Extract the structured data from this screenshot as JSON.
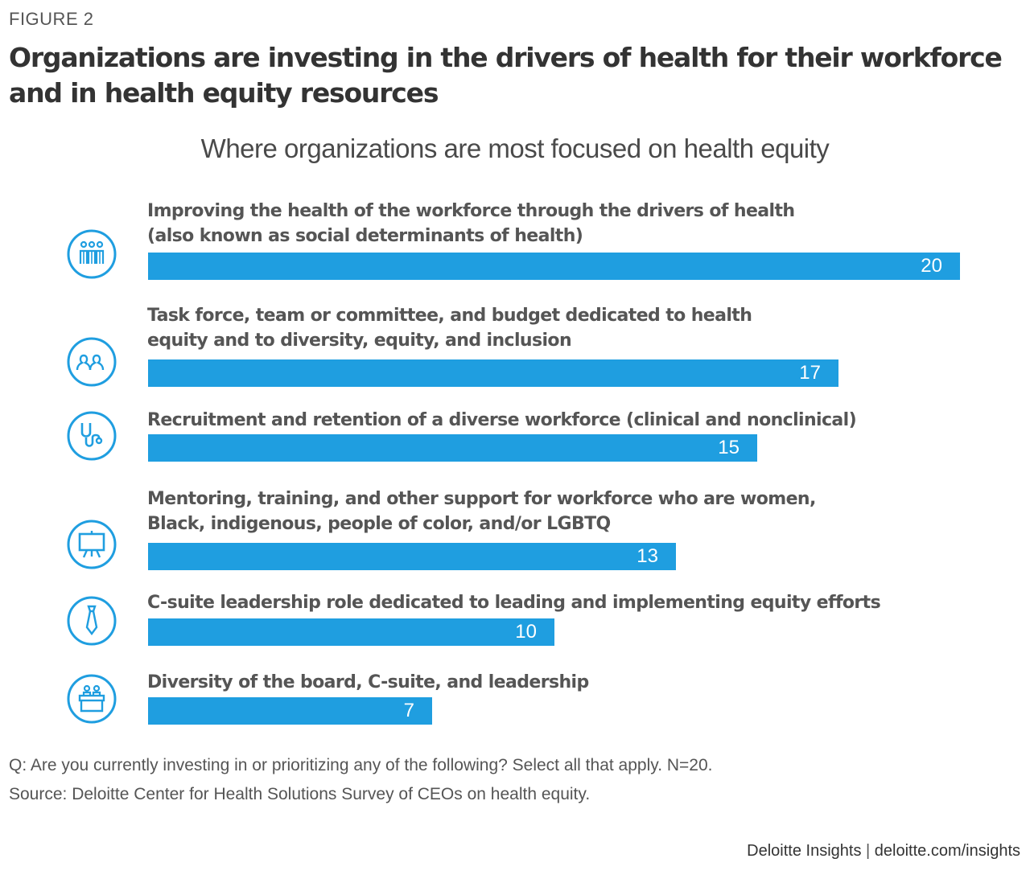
{
  "figure_label": "FIGURE 2",
  "chart_data": {
    "type": "bar",
    "orientation": "horizontal",
    "title": "Organizations are investing in the drivers of health for their workforce and in health equity resources",
    "subtitle": "Where organizations are most focused on health equity",
    "xlim": [
      0,
      20
    ],
    "grid": false,
    "color": "#1f9ee0",
    "categories": [
      {
        "lines": [
          "Improving the health of the workforce through the drivers of health",
          "(also known as social determinants of health)"
        ],
        "icon": "people-group-icon"
      },
      {
        "lines": [
          "Task force, team or committee, and budget dedicated to health",
          "equity and to diversity, equity, and inclusion"
        ],
        "icon": "team-icon"
      },
      {
        "lines": [
          "Recruitment and retention of a diverse workforce (clinical and nonclinical)"
        ],
        "icon": "stethoscope-icon"
      },
      {
        "lines": [
          "Mentoring, training, and other support for workforce who are women,",
          "Black, indigenous, people of color, and/or LGBTQ"
        ],
        "icon": "presentation-board-icon"
      },
      {
        "lines": [
          "C-suite leadership role dedicated to leading and implementing equity efforts"
        ],
        "icon": "necktie-icon"
      },
      {
        "lines": [
          "Diversity of the board, C-suite, and leadership"
        ],
        "icon": "boardroom-icon"
      }
    ],
    "values": [
      20,
      17,
      15,
      13,
      10,
      7
    ]
  },
  "footnotes": {
    "question": "Q: Are you currently investing in or prioritizing any of the following? Select all that apply. N=20.",
    "source": "Source: Deloitte Center for Health Solutions Survey of CEOs on health equity."
  },
  "brand": {
    "name": "Deloitte Insights",
    "separator": "|",
    "url": "deloitte.com/insights"
  }
}
